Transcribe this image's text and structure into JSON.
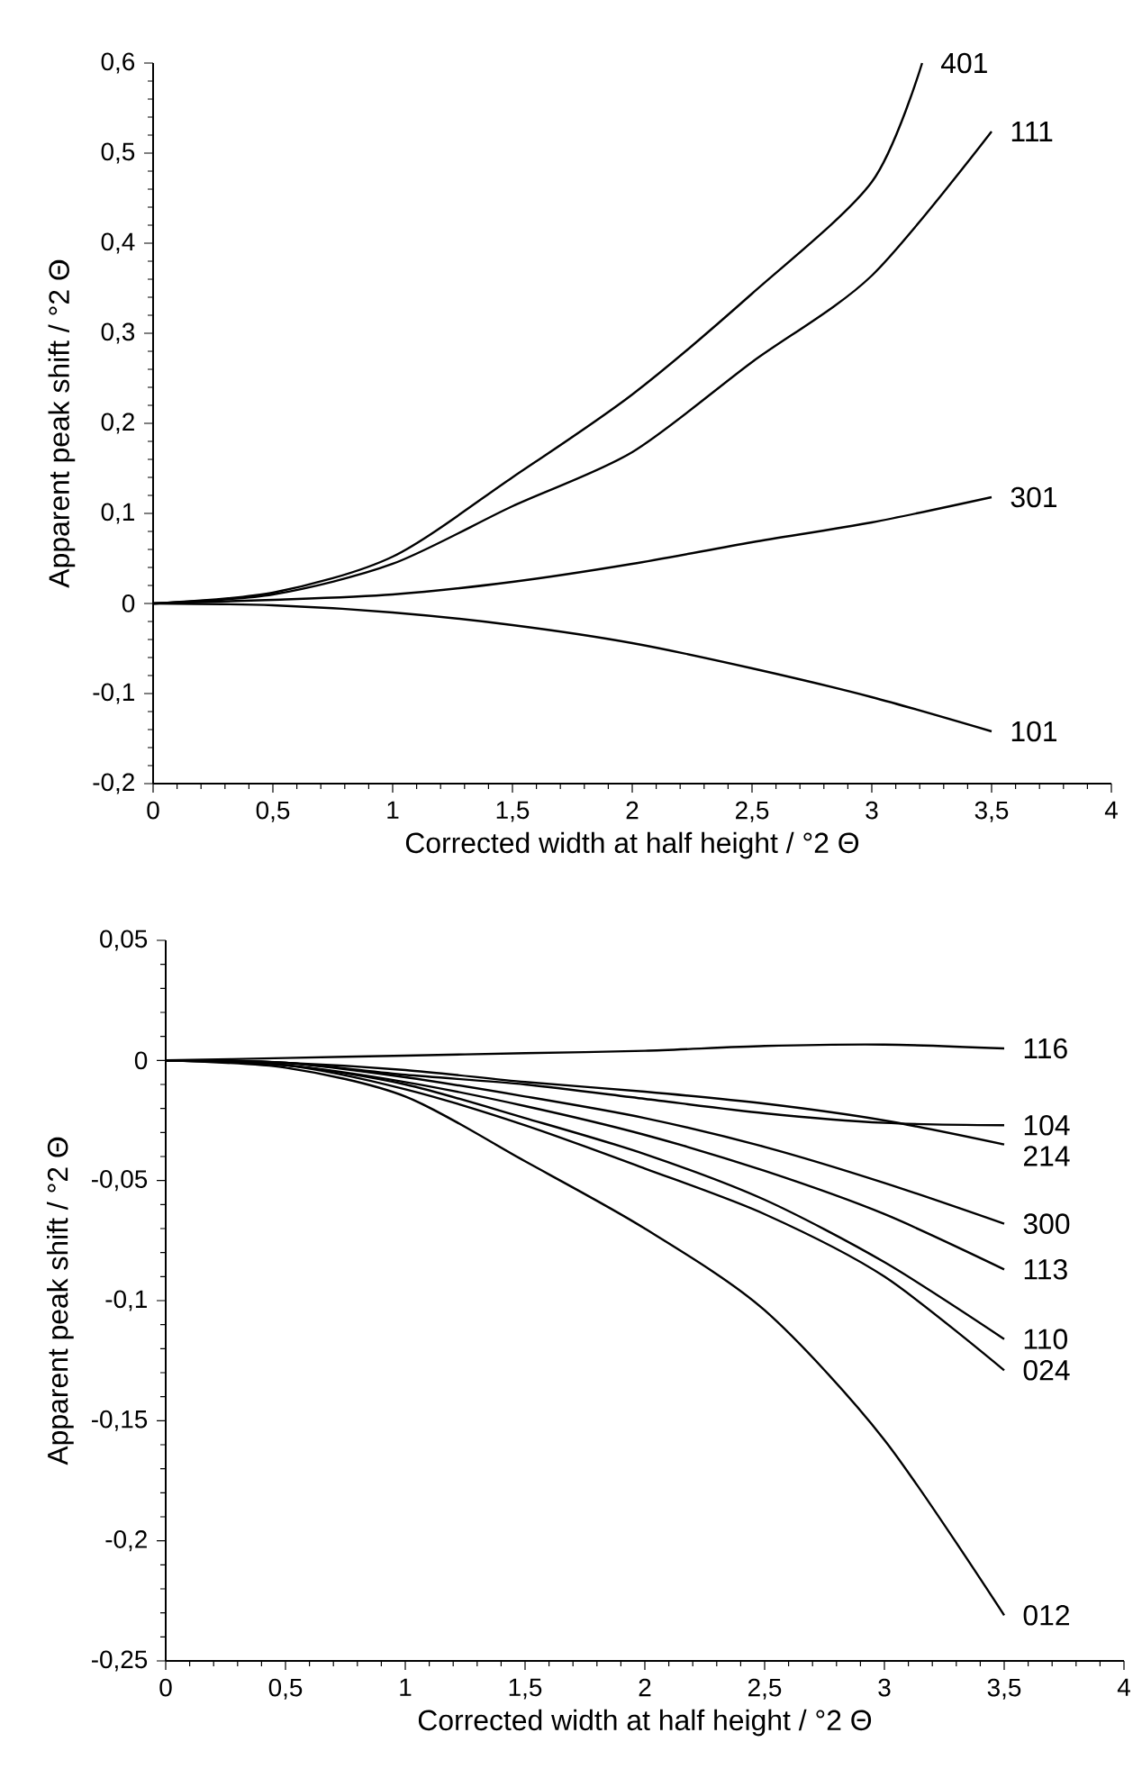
{
  "chart_data": [
    {
      "type": "line",
      "xlabel": "Corrected width at half height / °2 Θ",
      "ylabel": "Apparent peak shift / °2 Θ",
      "xlim": [
        0,
        4
      ],
      "ylim": [
        -0.2,
        0.6
      ],
      "xticks": [
        0,
        {
          "value": 0.5,
          "label": "0,5"
        },
        1,
        {
          "value": 1.5,
          "label": "1,5"
        },
        2,
        {
          "value": 2.5,
          "label": "2,5"
        },
        3,
        {
          "value": 3.5,
          "label": "3,5"
        },
        4
      ],
      "yticks": [
        {
          "value": -0.2,
          "label": "-0,2"
        },
        {
          "value": -0.1,
          "label": "-0,1"
        },
        0,
        {
          "value": 0.1,
          "label": "0,1"
        },
        {
          "value": 0.2,
          "label": "0,2"
        },
        {
          "value": 0.3,
          "label": "0,3"
        },
        {
          "value": 0.4,
          "label": "0,4"
        },
        {
          "value": 0.5,
          "label": "0,5"
        },
        {
          "value": 0.6,
          "label": "0,6"
        }
      ],
      "grid": false,
      "marker": "none",
      "line_style": "solid",
      "x": [
        0,
        0.5,
        1,
        1.5,
        2,
        2.5,
        3,
        3.5
      ],
      "series": [
        {
          "name": "401",
          "color": "#000000",
          "x": [
            0,
            0.5,
            1,
            1.5,
            2,
            2.5,
            3,
            3.21
          ],
          "values": [
            0,
            0.012,
            0.052,
            0.14,
            0.232,
            0.344,
            0.468,
            0.6
          ]
        },
        {
          "name": "111",
          "color": "#000000",
          "values": [
            0,
            0.01,
            0.044,
            0.108,
            0.168,
            0.268,
            0.364,
            0.524
          ]
        },
        {
          "name": "301",
          "color": "#000000",
          "values": [
            0,
            0.004,
            0.01,
            0.024,
            0.044,
            0.068,
            0.09,
            0.118
          ]
        },
        {
          "name": "101",
          "color": "#000000",
          "values": [
            0,
            -0.002,
            -0.01,
            -0.024,
            -0.044,
            -0.072,
            -0.104,
            -0.142
          ]
        }
      ]
    },
    {
      "type": "line",
      "xlabel": "Corrected width at half height / °2 Θ",
      "ylabel": "Apparent peak shift / °2 Θ",
      "xlim": [
        0,
        4
      ],
      "ylim": [
        -0.25,
        0.05
      ],
      "xticks": [
        0,
        {
          "value": 0.5,
          "label": "0,5"
        },
        1,
        {
          "value": 1.5,
          "label": "1,5"
        },
        2,
        {
          "value": 2.5,
          "label": "2,5"
        },
        3,
        {
          "value": 3.5,
          "label": "3,5"
        },
        4
      ],
      "yticks": [
        {
          "value": -0.25,
          "label": "-0,25"
        },
        {
          "value": -0.2,
          "label": "-0,2"
        },
        {
          "value": -0.15,
          "label": "-0,15"
        },
        {
          "value": -0.1,
          "label": "-0,1"
        },
        {
          "value": -0.05,
          "label": "-0,05"
        },
        0,
        {
          "value": 0.05,
          "label": "0,05"
        }
      ],
      "grid": false,
      "marker": "none",
      "line_style": "solid",
      "x": [
        0,
        0.5,
        1,
        1.5,
        2,
        2.5,
        3,
        3.5
      ],
      "series": [
        {
          "name": "116",
          "color": "#000000",
          "values": [
            0,
            0.001,
            0.002,
            0.003,
            0.004,
            0.006,
            0.0066,
            0.005
          ]
        },
        {
          "name": "104",
          "color": "#000000",
          "values": [
            0,
            -0.001,
            -0.006,
            -0.01,
            -0.016,
            -0.022,
            -0.026,
            -0.027
          ]
        },
        {
          "name": "214",
          "color": "#000000",
          "values": [
            0,
            -0.001,
            -0.004,
            -0.009,
            -0.013,
            -0.018,
            -0.025,
            -0.035
          ]
        },
        {
          "name": "300",
          "color": "#000000",
          "values": [
            0,
            -0.001,
            -0.007,
            -0.015,
            -0.024,
            -0.036,
            -0.051,
            -0.068
          ]
        },
        {
          "name": "113",
          "color": "#000000",
          "values": [
            0,
            -0.002,
            -0.009,
            -0.019,
            -0.031,
            -0.046,
            -0.064,
            -0.087
          ]
        },
        {
          "name": "110",
          "color": "#000000",
          "values": [
            0,
            -0.002,
            -0.01,
            -0.024,
            -0.039,
            -0.058,
            -0.084,
            -0.116
          ]
        },
        {
          "name": "024",
          "color": "#000000",
          "values": [
            0,
            -0.002,
            -0.012,
            -0.027,
            -0.045,
            -0.064,
            -0.09,
            -0.129
          ]
        },
        {
          "name": "012",
          "color": "#000000",
          "values": [
            0,
            -0.003,
            -0.015,
            -0.042,
            -0.07,
            -0.104,
            -0.158,
            -0.231
          ]
        }
      ]
    }
  ]
}
